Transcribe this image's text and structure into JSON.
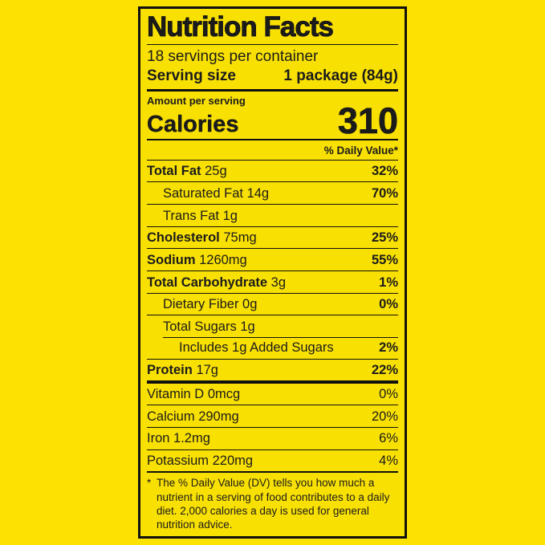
{
  "colors": {
    "background": "#fbe203",
    "label_background": "#f9e003",
    "ink": "#101010"
  },
  "label": {
    "title": "Nutrition Facts",
    "servings_per_container": "18 servings per container",
    "serving_size": {
      "label": "Serving size",
      "value": "1 package (84g)"
    },
    "amount_per_serving": "Amount per serving",
    "calories": {
      "label": "Calories",
      "value": "310"
    },
    "daily_value_header": "% Daily Value*",
    "nutrient_rows": [
      {
        "name": "Total Fat",
        "amount": "25g",
        "dv": "32%"
      },
      {
        "name": "Saturated Fat",
        "amount": "14g",
        "dv": "70%"
      },
      {
        "name": "Trans Fat",
        "amount": "1g",
        "dv": ""
      },
      {
        "name": "Cholesterol",
        "amount": "75mg",
        "dv": "25%"
      },
      {
        "name": "Sodium",
        "amount": "1260mg",
        "dv": "55%"
      },
      {
        "name": "Total Carbohydrate",
        "amount": "3g",
        "dv": "1%"
      },
      {
        "name": "Dietary Fiber",
        "amount": "0g",
        "dv": "0%"
      },
      {
        "name": "Total Sugars",
        "amount": "1g",
        "dv": ""
      },
      {
        "name": "Includes 1g Added Sugars",
        "amount": "",
        "dv": "2%"
      },
      {
        "name": "Protein",
        "amount": "17g",
        "dv": "22%"
      }
    ],
    "micronutrient_rows": [
      {
        "name": "Vitamin D",
        "amount": "0mcg",
        "dv": "0%"
      },
      {
        "name": "Calcium",
        "amount": "290mg",
        "dv": "20%"
      },
      {
        "name": "Iron",
        "amount": "1.2mg",
        "dv": "6%"
      },
      {
        "name": "Potassium",
        "amount": "220mg",
        "dv": "4%"
      }
    ],
    "footnote_marker": "*",
    "footnote_text": "The % Daily Value (DV) tells you how much a nutrient in a serving of food contributes to a daily diet. 2,000 calories a day is used for general nutrition advice."
  }
}
